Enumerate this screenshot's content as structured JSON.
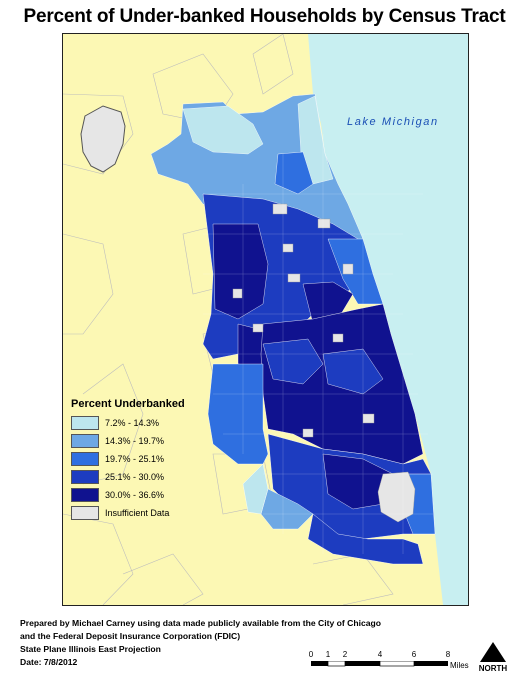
{
  "title": "Percent of Under-banked Households by Census Tract",
  "lake_label": "Lake Michigan",
  "legend": {
    "title": "Percent Underbanked",
    "items": [
      {
        "label": "7.2% - 14.3%",
        "color": "#bde6ee"
      },
      {
        "label": "14.3% - 19.7%",
        "color": "#6ea8e4"
      },
      {
        "label": "19.7% - 25.1%",
        "color": "#2f6fe0"
      },
      {
        "label": "25.1% - 30.0%",
        "color": "#1d3cc0"
      },
      {
        "label": "30.0% - 36.6%",
        "color": "#10128f"
      },
      {
        "label": "Insufficient Data",
        "color": "#e6e6e6"
      }
    ]
  },
  "colors": {
    "land": "#fcf8b4",
    "water": "#c8eff1",
    "boundary": "#bdbdbd",
    "frame": "#222222"
  },
  "credits": {
    "line1": "Prepared by Michael Carney using data made publicly available from the City of Chicago",
    "line2": "and the Federal Deposit Insurance Corporation (FDIC)",
    "line3": "State Plane Illinois East Projection",
    "line4": "Date: 7/8/2012"
  },
  "scale": {
    "ticks": [
      "0",
      "1",
      "2",
      "4",
      "6",
      "8"
    ],
    "unit": "Miles"
  },
  "north_label": "NORTH"
}
